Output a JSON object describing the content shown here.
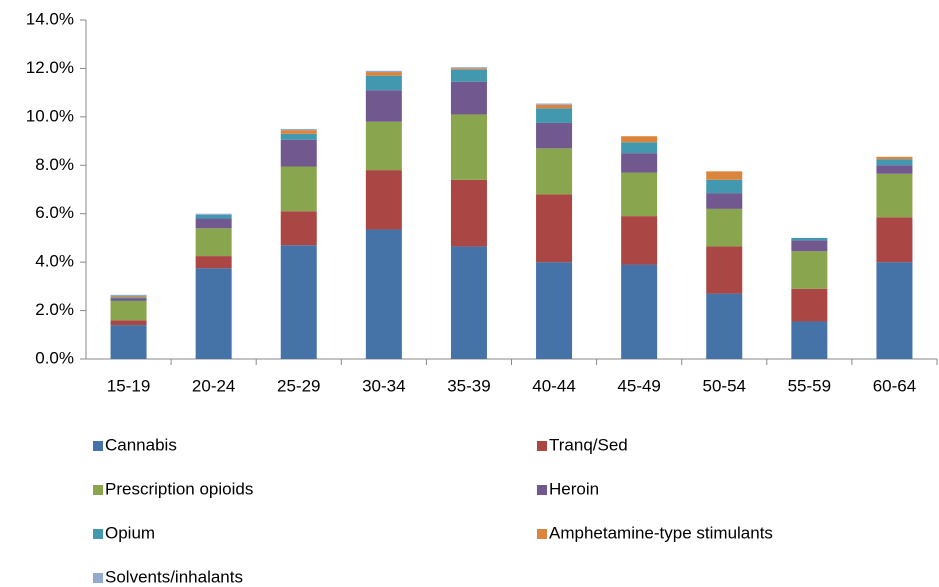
{
  "chart_data": {
    "type": "stacked_bar",
    "categories": [
      "15-19",
      "20-24",
      "25-29",
      "30-34",
      "35-39",
      "40-44",
      "45-49",
      "50-54",
      "55-59",
      "60-64"
    ],
    "series": [
      {
        "name": "Cannabis",
        "color": "#4572A7",
        "values": [
          1.4,
          3.75,
          4.7,
          5.35,
          4.65,
          4.0,
          3.9,
          2.7,
          1.55,
          4.0
        ]
      },
      {
        "name": "Tranq/Sed",
        "color": "#AA4643",
        "values": [
          0.2,
          0.5,
          1.4,
          2.45,
          2.75,
          2.8,
          2.0,
          1.95,
          1.35,
          1.85
        ]
      },
      {
        "name": "Prescription opioids",
        "color": "#89A54E",
        "values": [
          0.8,
          1.15,
          1.85,
          2.0,
          2.7,
          1.9,
          1.8,
          1.55,
          1.55,
          1.8
        ]
      },
      {
        "name": "Heroin",
        "color": "#71588F",
        "values": [
          0.1,
          0.4,
          1.1,
          1.3,
          1.35,
          1.05,
          0.8,
          0.65,
          0.45,
          0.35
        ]
      },
      {
        "name": "Opium",
        "color": "#4198AF",
        "values": [
          0.05,
          0.15,
          0.25,
          0.6,
          0.5,
          0.6,
          0.45,
          0.55,
          0.1,
          0.25
        ]
      },
      {
        "name": "Amphetamine-type stimulants",
        "color": "#DB843D",
        "values": [
          0.05,
          0,
          0.15,
          0.15,
          0.05,
          0.15,
          0.25,
          0.35,
          0,
          0.1
        ]
      },
      {
        "name": "Solvents/inhalants",
        "color": "#93A9CF",
        "values": [
          0.05,
          0.05,
          0.05,
          0.05,
          0.05,
          0.05,
          0,
          0,
          0,
          0
        ]
      }
    ],
    "ylim": [
      0,
      14
    ],
    "yticks": [
      {
        "value": 0,
        "label": "0.0%"
      },
      {
        "value": 2,
        "label": "2.0%"
      },
      {
        "value": 4,
        "label": "4.0%"
      },
      {
        "value": 6,
        "label": "6.0%"
      },
      {
        "value": 8,
        "label": "8.0%"
      },
      {
        "value": 10,
        "label": "10.0%"
      },
      {
        "value": 12,
        "label": "12.0%"
      },
      {
        "value": 14,
        "label": "14.0%"
      }
    ],
    "legend": "bottom"
  }
}
